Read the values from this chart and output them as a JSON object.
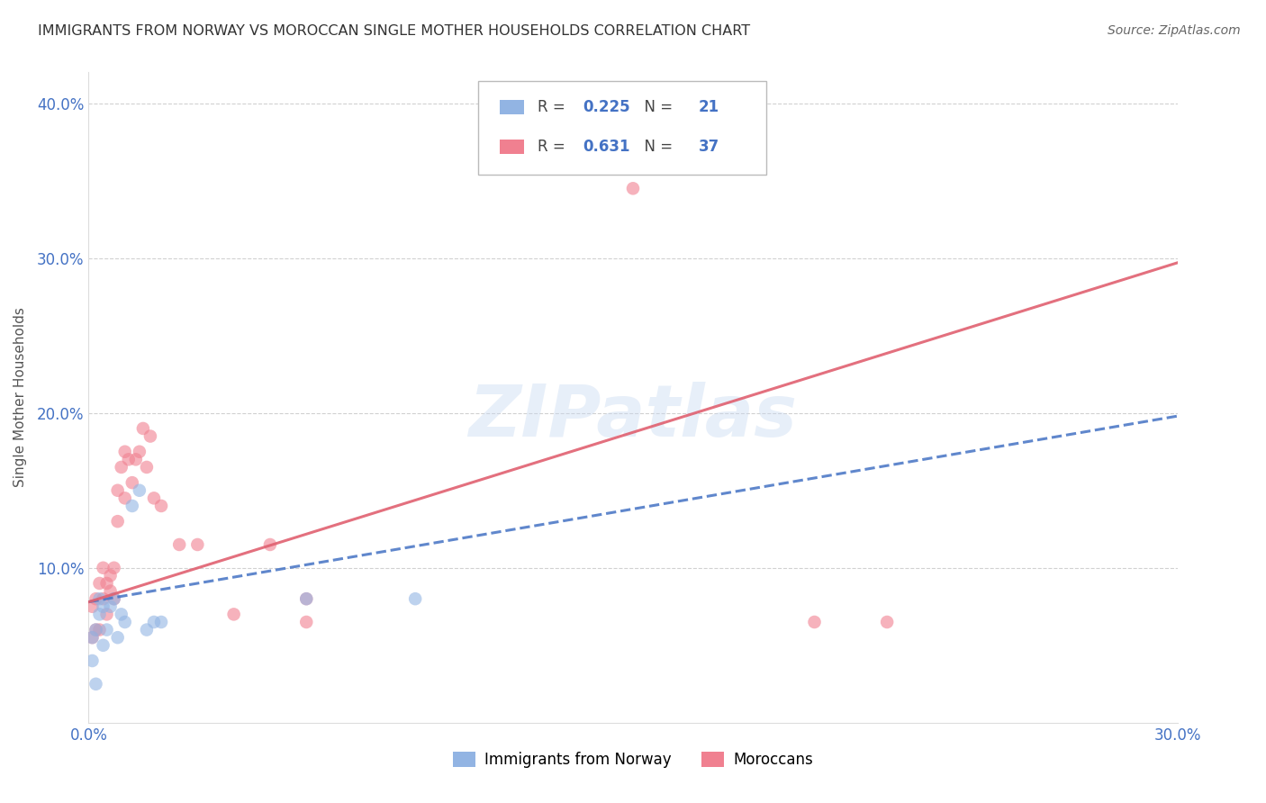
{
  "title": "IMMIGRANTS FROM NORWAY VS MOROCCAN SINGLE MOTHER HOUSEHOLDS CORRELATION CHART",
  "source": "Source: ZipAtlas.com",
  "ylabel": "Single Mother Households",
  "xlim": [
    0.0,
    0.3
  ],
  "ylim": [
    0.0,
    0.42
  ],
  "legend_norway_R": "0.225",
  "legend_norway_N": "21",
  "legend_moroccan_R": "0.631",
  "legend_moroccan_N": "37",
  "norway_color": "#92b4e3",
  "moroccan_color": "#f08090",
  "norway_line_color": "#4472c4",
  "moroccan_line_color": "#e06070",
  "watermark": "ZIPatlas",
  "norway_x": [
    0.001,
    0.001,
    0.002,
    0.002,
    0.003,
    0.003,
    0.004,
    0.004,
    0.005,
    0.006,
    0.007,
    0.008,
    0.009,
    0.01,
    0.012,
    0.014,
    0.016,
    0.018,
    0.02,
    0.06,
    0.09
  ],
  "norway_y": [
    0.04,
    0.055,
    0.025,
    0.06,
    0.07,
    0.08,
    0.05,
    0.075,
    0.06,
    0.075,
    0.08,
    0.055,
    0.07,
    0.065,
    0.14,
    0.15,
    0.06,
    0.065,
    0.065,
    0.08,
    0.08
  ],
  "moroccan_x": [
    0.001,
    0.001,
    0.002,
    0.002,
    0.003,
    0.003,
    0.004,
    0.004,
    0.005,
    0.005,
    0.006,
    0.006,
    0.007,
    0.007,
    0.008,
    0.008,
    0.009,
    0.01,
    0.01,
    0.011,
    0.012,
    0.013,
    0.014,
    0.015,
    0.016,
    0.017,
    0.018,
    0.02,
    0.025,
    0.03,
    0.04,
    0.05,
    0.06,
    0.15,
    0.2,
    0.22,
    0.06
  ],
  "moroccan_y": [
    0.055,
    0.075,
    0.06,
    0.08,
    0.06,
    0.09,
    0.08,
    0.1,
    0.07,
    0.09,
    0.085,
    0.095,
    0.08,
    0.1,
    0.13,
    0.15,
    0.165,
    0.145,
    0.175,
    0.17,
    0.155,
    0.17,
    0.175,
    0.19,
    0.165,
    0.185,
    0.145,
    0.14,
    0.115,
    0.115,
    0.07,
    0.115,
    0.065,
    0.345,
    0.065,
    0.065,
    0.08
  ]
}
